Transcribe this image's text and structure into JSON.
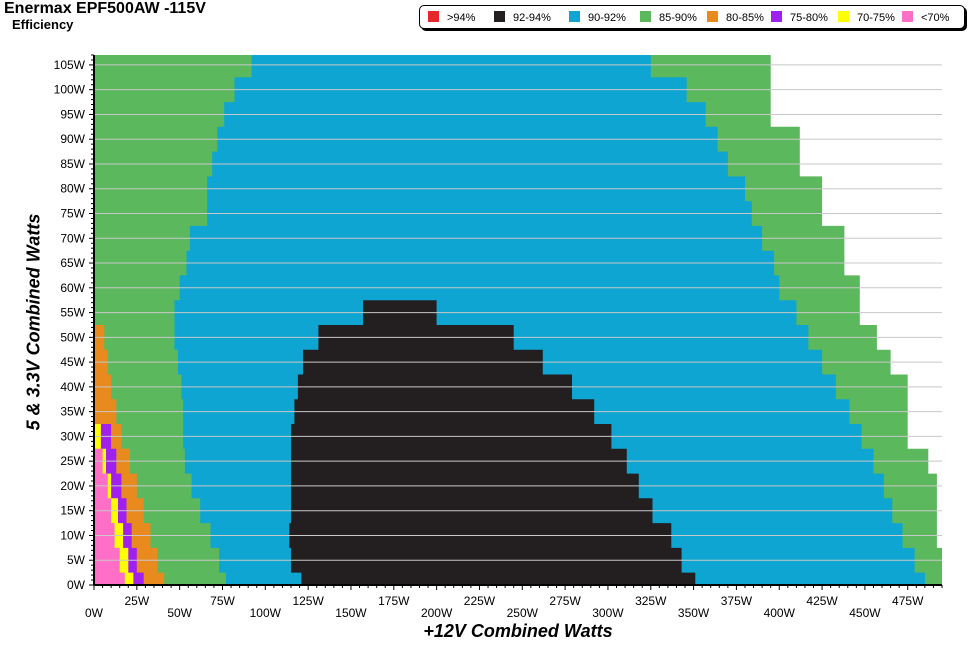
{
  "title": "Enermax EPF500AW -115V",
  "subtitle": "Efficiency",
  "legend": [
    {
      "label": ">94%",
      "color": "#e8262b"
    },
    {
      "label": "92-94%",
      "color": "#231f20"
    },
    {
      "label": "90-92%",
      "color": "#0ea5d2"
    },
    {
      "label": "85-90%",
      "color": "#5cb85c"
    },
    {
      "label": "80-85%",
      "color": "#e88a1e"
    },
    {
      "label": "75-80%",
      "color": "#a020f0"
    },
    {
      "label": "70-75%",
      "color": "#ffff00"
    },
    {
      "label": "<70%",
      "color": "#ff6ec7"
    }
  ],
  "chart_data": {
    "type": "heatmap",
    "title": "Enermax EPF500AW -115V",
    "subtitle": "Efficiency",
    "xlabel": "+12V Combined Watts",
    "ylabel": "5 & 3.3V Combined Watts",
    "xlim": [
      0,
      495
    ],
    "ylim": [
      0,
      107
    ],
    "x_ticks": [
      "0W",
      "25W",
      "50W",
      "75W",
      "100W",
      "125W",
      "150W",
      "175W",
      "200W",
      "225W",
      "250W",
      "275W",
      "300W",
      "325W",
      "350W",
      "375W",
      "400W",
      "425W",
      "450W",
      "475W"
    ],
    "y_ticks": [
      "0W",
      "5W",
      "10W",
      "15W",
      "20W",
      "25W",
      "30W",
      "35W",
      "40W",
      "45W",
      "50W",
      "55W",
      "60W",
      "65W",
      "70W",
      "75W",
      "80W",
      "85W",
      "90W",
      "95W",
      "100W",
      "105W"
    ],
    "grid": true,
    "legend_position": "top-right",
    "region_boundaries": {
      "description_units": "x in +12V watts, y in 5&3.3V watts; regions listed as outer x-limit per y level",
      "y_levels": [
        0,
        5,
        10,
        15,
        20,
        25,
        30,
        35,
        40,
        45,
        50,
        55,
        60,
        65,
        70,
        75,
        80,
        85,
        90,
        95,
        100,
        105
      ],
      "pink_lt70_right_x": [
        18,
        15,
        12,
        10,
        8,
        5,
        null,
        null,
        null,
        null,
        null,
        null,
        null,
        null,
        null,
        null,
        null,
        null,
        null,
        null,
        null,
        null
      ],
      "yellow_70_75_right_x": [
        23,
        20,
        17,
        14,
        10,
        7,
        4,
        null,
        null,
        null,
        null,
        null,
        null,
        null,
        null,
        null,
        null,
        null,
        null,
        null,
        null,
        null
      ],
      "purple_75_80_right_x": [
        29,
        25,
        22,
        19,
        16,
        13,
        10,
        null,
        null,
        null,
        null,
        null,
        null,
        null,
        null,
        null,
        null,
        null,
        null,
        null,
        null,
        null
      ],
      "orange_80_85_right_x": [
        41,
        37,
        33,
        29,
        25,
        21,
        16,
        13,
        10,
        8,
        6,
        null,
        null,
        null,
        null,
        null,
        null,
        null,
        null,
        null,
        null,
        null
      ],
      "green_85_90_right_x": [
        77,
        73,
        68,
        62,
        57,
        53,
        52,
        52,
        51,
        49,
        47,
        47,
        50,
        54,
        56,
        66,
        66,
        69,
        72,
        76,
        82,
        92
      ],
      "black_92_94_left_x": [
        121,
        115,
        114,
        115,
        115,
        115,
        115,
        117,
        119,
        122,
        131,
        157,
        null,
        null,
        null,
        null,
        null,
        null,
        null,
        null,
        null,
        null
      ],
      "black_92_94_right_x": [
        351,
        343,
        337,
        326,
        318,
        311,
        302,
        292,
        279,
        262,
        245,
        200,
        null,
        null,
        null,
        null,
        null,
        null,
        null,
        null,
        null,
        null
      ],
      "blue_90_92_right_x": [
        485,
        479,
        472,
        466,
        461,
        455,
        448,
        441,
        433,
        425,
        417,
        410,
        400,
        397,
        390,
        384,
        380,
        370,
        364,
        357,
        346,
        325
      ],
      "green_upper_right_x": [
        495,
        495,
        492,
        492,
        492,
        487,
        475,
        475,
        475,
        465,
        457,
        447,
        447,
        438,
        438,
        425,
        425,
        412,
        412,
        395,
        395,
        395
      ]
    }
  },
  "axes": {
    "x_ticks": [
      "0W",
      "25W",
      "50W",
      "75W",
      "100W",
      "125W",
      "150W",
      "175W",
      "200W",
      "225W",
      "250W",
      "275W",
      "300W",
      "325W",
      "350W",
      "375W",
      "400W",
      "425W",
      "450W",
      "475W"
    ],
    "y_ticks": [
      "0W",
      "5W",
      "10W",
      "15W",
      "20W",
      "25W",
      "30W",
      "35W",
      "40W",
      "45W",
      "50W",
      "55W",
      "60W",
      "65W",
      "70W",
      "75W",
      "80W",
      "85W",
      "90W",
      "95W",
      "100W",
      "105W"
    ],
    "xlabel": "+12V Combined Watts",
    "ylabel": "5 & 3.3V Combined Watts"
  }
}
